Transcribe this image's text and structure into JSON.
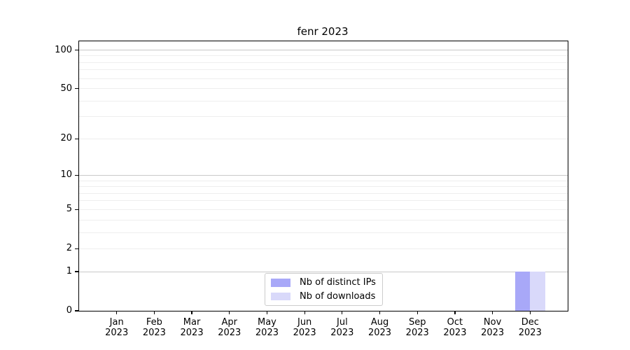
{
  "chart_data": {
    "type": "bar",
    "title": "fenr 2023",
    "xlabel": "",
    "ylabel": "",
    "categories": [
      "Jan 2023",
      "Feb 2023",
      "Mar 2023",
      "Apr 2023",
      "May 2023",
      "Jun 2023",
      "Jul 2023",
      "Aug 2023",
      "Sep 2023",
      "Oct 2023",
      "Nov 2023",
      "Dec 2023"
    ],
    "series": [
      {
        "name": "Nb of distinct IPs",
        "color": "#a8a8f8",
        "values": [
          0,
          0,
          0,
          0,
          0,
          0,
          0,
          0,
          0,
          0,
          0,
          1
        ]
      },
      {
        "name": "Nb of downloads",
        "color": "#d9d9fa",
        "values": [
          0,
          0,
          0,
          0,
          0,
          0,
          0,
          0,
          0,
          0,
          0,
          1
        ]
      }
    ],
    "yscale": "log1p",
    "ylim": [
      0,
      117
    ],
    "yticks": [
      0,
      1,
      2,
      5,
      10,
      20,
      50,
      100
    ],
    "ytick_labels": [
      "0",
      "1",
      "2",
      "5",
      "10",
      "20",
      "50",
      "100"
    ],
    "y_major_gridlines": [
      1,
      10,
      100
    ],
    "y_minor_gridlines": [
      2,
      3,
      4,
      5,
      6,
      7,
      8,
      9,
      20,
      30,
      40,
      50,
      60,
      70,
      80,
      90
    ],
    "grid": true,
    "legend_position": "lower center",
    "colors": {
      "background": "#ffffff",
      "axis": "#000000",
      "text": "#000000",
      "major_grid": "#c8c8c8",
      "minor_grid": "#eeeeee"
    }
  }
}
